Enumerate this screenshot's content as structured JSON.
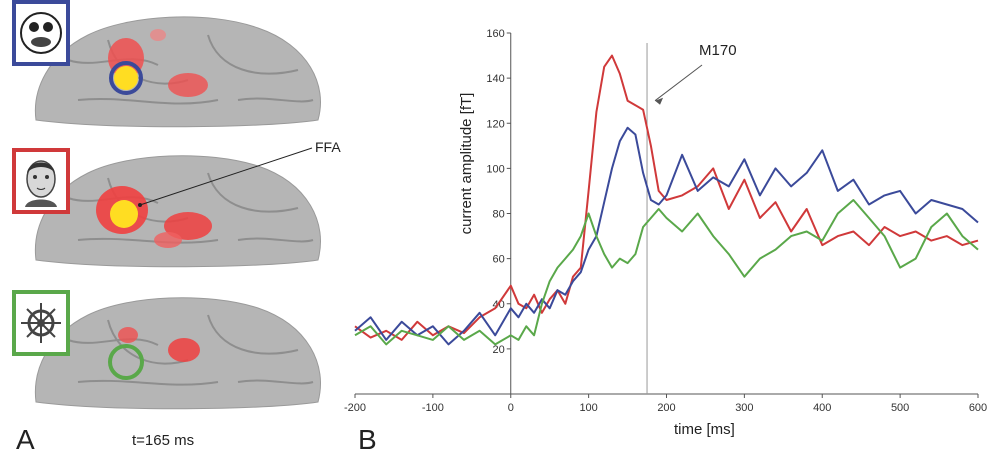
{
  "panel_a": {
    "label": "A",
    "time_label": "t=165 ms",
    "ffa_label": "FFA",
    "stimuli": [
      {
        "icon": "smiley-face-icon",
        "frame_color": "#3b4a9a"
      },
      {
        "icon": "face-photo-icon",
        "frame_color": "#d0393a"
      },
      {
        "icon": "ship-wheel-icon",
        "frame_color": "#5aa84a"
      }
    ]
  },
  "panel_b": {
    "label": "B",
    "annotation": "M170",
    "marker_time": 175
  },
  "chart_data": {
    "type": "line",
    "xlabel": "time [ms]",
    "ylabel": "current amplitude [fT]",
    "xlim": [
      -200,
      600
    ],
    "ylim": [
      0,
      160
    ],
    "xticks": [
      -200,
      -100,
      0,
      100,
      200,
      300,
      400,
      500,
      600
    ],
    "yticks": [
      20,
      40,
      60,
      80,
      100,
      120,
      140,
      160
    ],
    "legend": "none",
    "series": [
      {
        "color": "#d0393a",
        "x": [
          -200,
          -180,
          -160,
          -140,
          -120,
          -100,
          -80,
          -60,
          -40,
          -20,
          0,
          10,
          20,
          30,
          40,
          50,
          60,
          70,
          80,
          90,
          100,
          110,
          120,
          130,
          140,
          150,
          160,
          170,
          180,
          190,
          200,
          220,
          240,
          260,
          280,
          300,
          320,
          340,
          360,
          380,
          400,
          420,
          440,
          460,
          480,
          500,
          520,
          540,
          560,
          580,
          600
        ],
        "y": [
          30,
          25,
          28,
          24,
          32,
          26,
          30,
          27,
          34,
          38,
          48,
          40,
          38,
          44,
          36,
          42,
          46,
          40,
          52,
          56,
          90,
          125,
          145,
          150,
          142,
          130,
          128,
          126,
          110,
          90,
          86,
          88,
          92,
          100,
          82,
          95,
          78,
          85,
          72,
          82,
          66,
          70,
          72,
          66,
          74,
          70,
          72,
          68,
          70,
          66,
          68
        ]
      },
      {
        "color": "#3b4a9a",
        "x": [
          -200,
          -180,
          -160,
          -140,
          -120,
          -100,
          -80,
          -60,
          -40,
          -20,
          0,
          10,
          20,
          30,
          40,
          50,
          60,
          70,
          80,
          90,
          100,
          110,
          120,
          130,
          140,
          150,
          160,
          170,
          180,
          190,
          200,
          220,
          240,
          260,
          280,
          300,
          320,
          340,
          360,
          380,
          400,
          420,
          440,
          460,
          480,
          500,
          520,
          540,
          560,
          580,
          600
        ],
        "y": [
          28,
          34,
          24,
          32,
          26,
          30,
          22,
          28,
          36,
          26,
          38,
          34,
          40,
          36,
          42,
          38,
          46,
          44,
          50,
          54,
          64,
          70,
          85,
          100,
          112,
          118,
          115,
          98,
          86,
          84,
          88,
          106,
          90,
          96,
          92,
          104,
          88,
          100,
          92,
          98,
          108,
          90,
          95,
          84,
          88,
          90,
          80,
          86,
          84,
          82,
          76
        ]
      },
      {
        "color": "#5aa84a",
        "x": [
          -200,
          -180,
          -160,
          -140,
          -120,
          -100,
          -80,
          -60,
          -40,
          -20,
          0,
          10,
          20,
          30,
          40,
          50,
          60,
          70,
          80,
          90,
          100,
          110,
          120,
          130,
          140,
          150,
          160,
          170,
          180,
          190,
          200,
          220,
          240,
          260,
          280,
          300,
          320,
          340,
          360,
          380,
          400,
          420,
          440,
          460,
          480,
          500,
          520,
          540,
          560,
          580,
          600
        ],
        "y": [
          26,
          30,
          22,
          28,
          26,
          24,
          30,
          24,
          28,
          22,
          26,
          24,
          30,
          26,
          40,
          50,
          56,
          60,
          64,
          70,
          80,
          70,
          62,
          56,
          60,
          58,
          62,
          74,
          78,
          82,
          78,
          72,
          80,
          70,
          62,
          52,
          60,
          64,
          70,
          72,
          68,
          80,
          86,
          78,
          70,
          56,
          60,
          74,
          80,
          70,
          64
        ]
      }
    ]
  }
}
